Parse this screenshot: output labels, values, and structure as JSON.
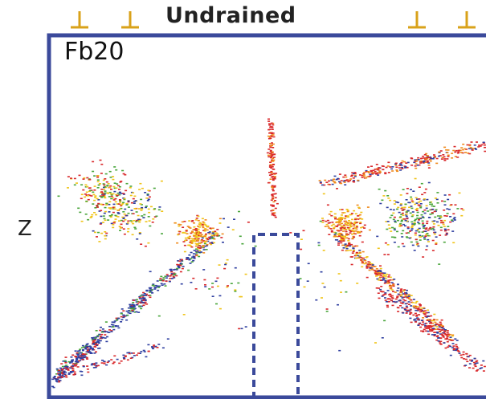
{
  "title": "Undrained",
  "panel_label": "Fb20",
  "axis_label": "Z",
  "colors": {
    "frame": "#3b4a9b",
    "marker": "#d9a21a",
    "red": "#d9282b",
    "yellow": "#f0c419",
    "green": "#49a53b",
    "blue": "#2f3fa0",
    "orange": "#f08a1c"
  },
  "markers": {
    "icon": "settlement-marker-icon",
    "count_left": 2,
    "count_right": 2
  }
}
